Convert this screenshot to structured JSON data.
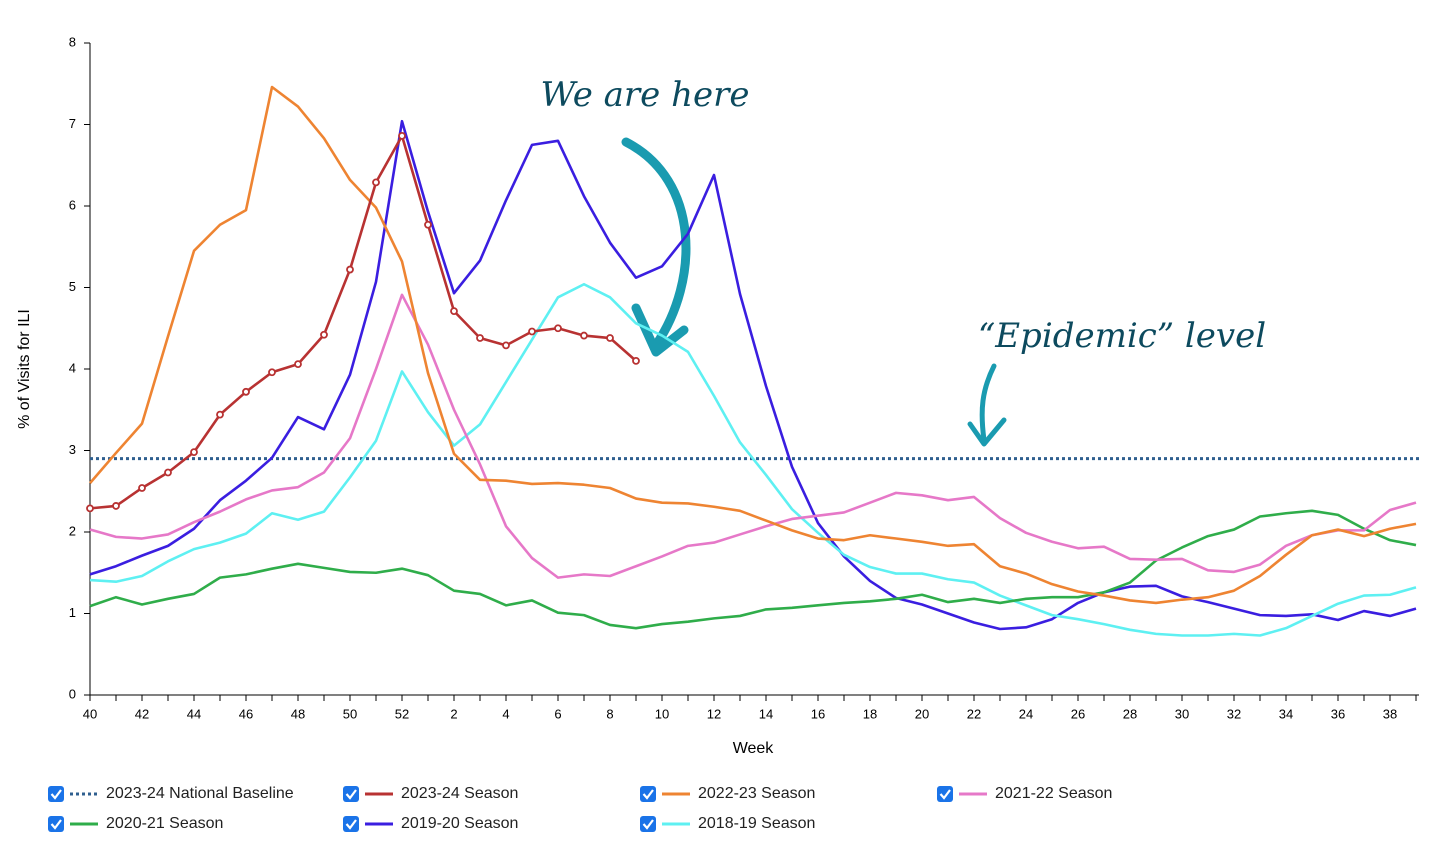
{
  "chart_data": {
    "type": "line",
    "xlabel": "Week",
    "ylabel": "% of Visits for ILI",
    "categories": [
      "40",
      null,
      "42",
      null,
      "44",
      null,
      "46",
      null,
      "48",
      null,
      "50",
      null,
      "52",
      null,
      "2",
      null,
      "4",
      null,
      "6",
      null,
      "8",
      null,
      "10",
      null,
      "12",
      null,
      "14",
      null,
      "16",
      null,
      "18",
      null,
      "20",
      null,
      "22",
      null,
      "24",
      null,
      "26",
      null,
      "28",
      null,
      "30",
      null,
      "32",
      null,
      "34",
      null,
      "36",
      null,
      "38",
      null
    ],
    "ylim": [
      0,
      8
    ],
    "yticks": [
      0,
      1,
      2,
      3,
      4,
      5,
      6,
      7,
      8
    ],
    "baseline": {
      "name": "2023-24 National Baseline",
      "color": "#2f5f8f",
      "value": 2.9
    },
    "series": [
      {
        "name": "2023-24 Season",
        "color": "#b83232",
        "markers": true,
        "values": [
          2.29,
          2.32,
          2.54,
          2.73,
          2.98,
          3.44,
          3.72,
          3.96,
          4.06,
          4.42,
          5.22,
          6.29,
          6.86,
          5.77,
          4.71,
          4.38,
          4.29,
          4.46,
          4.5,
          4.41,
          4.38,
          4.1,
          null,
          null,
          null,
          null,
          null,
          null,
          null,
          null,
          null,
          null,
          null,
          null,
          null,
          null,
          null,
          null,
          null,
          null,
          null,
          null,
          null,
          null,
          null,
          null,
          null,
          null,
          null,
          null,
          null,
          null
        ]
      },
      {
        "name": "2022-23 Season",
        "color": "#ee8432",
        "values": [
          2.6,
          2.97,
          3.33,
          4.4,
          5.45,
          5.77,
          5.95,
          7.46,
          7.22,
          6.83,
          6.32,
          5.98,
          5.32,
          3.95,
          2.96,
          2.64,
          2.63,
          2.59,
          2.6,
          2.58,
          2.54,
          2.41,
          2.36,
          2.35,
          2.31,
          2.26,
          2.14,
          2.02,
          1.92,
          1.9,
          1.96,
          1.92,
          1.88,
          1.83,
          1.85,
          1.58,
          1.49,
          1.36,
          1.27,
          1.22,
          1.16,
          1.13,
          1.17,
          1.2,
          1.28,
          1.46,
          1.72,
          1.96,
          2.03,
          1.95,
          2.04,
          2.1
        ]
      },
      {
        "name": "2021-22 Season",
        "color": "#e678c8",
        "values": [
          2.03,
          1.94,
          1.92,
          1.97,
          2.12,
          2.25,
          2.4,
          2.51,
          2.55,
          2.73,
          3.15,
          4.0,
          4.91,
          4.3,
          3.5,
          2.83,
          2.07,
          1.68,
          1.44,
          1.48,
          1.46,
          1.58,
          1.7,
          1.83,
          1.87,
          1.97,
          2.07,
          2.16,
          2.2,
          2.24,
          2.36,
          2.48,
          2.45,
          2.39,
          2.43,
          2.17,
          1.99,
          1.88,
          1.8,
          1.82,
          1.67,
          1.66,
          1.67,
          1.53,
          1.51,
          1.6,
          1.83,
          1.96,
          2.02,
          2.02,
          2.27,
          2.36
        ]
      },
      {
        "name": "2020-21 Season",
        "color": "#2fad4a",
        "values": [
          1.09,
          1.2,
          1.11,
          1.18,
          1.24,
          1.44,
          1.48,
          1.55,
          1.61,
          1.56,
          1.51,
          1.5,
          1.55,
          1.47,
          1.28,
          1.24,
          1.1,
          1.16,
          1.01,
          0.98,
          0.86,
          0.82,
          0.87,
          0.9,
          0.94,
          0.97,
          1.05,
          1.07,
          1.1,
          1.13,
          1.15,
          1.18,
          1.23,
          1.14,
          1.18,
          1.13,
          1.18,
          1.2,
          1.2,
          1.26,
          1.38,
          1.65,
          1.81,
          1.95,
          2.03,
          2.19,
          2.23,
          2.26,
          2.21,
          2.04,
          1.9,
          1.84
        ]
      },
      {
        "name": "2019-20 Season",
        "color": "#3a1ee0",
        "values": [
          1.48,
          1.58,
          1.71,
          1.83,
          2.04,
          2.39,
          2.63,
          2.91,
          3.41,
          3.26,
          3.93,
          5.07,
          7.04,
          5.93,
          4.93,
          5.33,
          6.07,
          6.75,
          6.8,
          6.12,
          5.55,
          5.12,
          5.26,
          5.66,
          6.38,
          4.92,
          3.79,
          2.8,
          2.11,
          1.7,
          1.4,
          1.19,
          1.11,
          1.0,
          0.89,
          0.81,
          0.83,
          0.93,
          1.13,
          1.26,
          1.33,
          1.34,
          1.21,
          1.14,
          1.06,
          0.98,
          0.97,
          0.99,
          0.92,
          1.03,
          0.97,
          1.06
        ]
      },
      {
        "name": "2018-19 Season",
        "color": "#5ef0f2",
        "values": [
          1.41,
          1.39,
          1.46,
          1.64,
          1.79,
          1.87,
          1.98,
          2.23,
          2.15,
          2.25,
          2.67,
          3.12,
          3.97,
          3.47,
          3.06,
          3.32,
          3.84,
          4.36,
          4.88,
          5.04,
          4.88,
          4.56,
          4.41,
          4.21,
          3.67,
          3.1,
          2.7,
          2.28,
          1.99,
          1.72,
          1.57,
          1.49,
          1.49,
          1.42,
          1.38,
          1.22,
          1.1,
          0.98,
          0.93,
          0.87,
          0.8,
          0.75,
          0.73,
          0.73,
          0.75,
          0.73,
          0.82,
          0.97,
          1.12,
          1.22,
          1.23,
          1.32
        ]
      }
    ],
    "annotations": [
      "We are here",
      "“Epidemic” level"
    ]
  }
}
